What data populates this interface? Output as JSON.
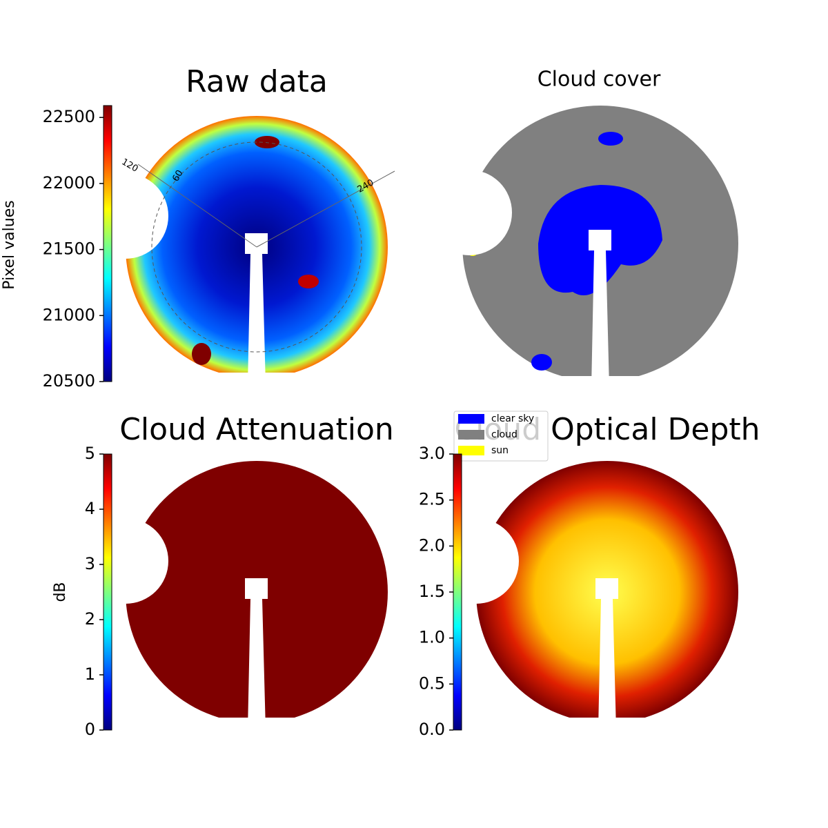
{
  "chart_data": [
    {
      "type": "image",
      "title": "Raw data",
      "colorbar": {
        "label": "Pixel values",
        "colormap": "jet",
        "ylim": [
          20500,
          22590
        ],
        "yticks": [
          20500,
          21000,
          21500,
          22000,
          22500
        ]
      },
      "annotations": [
        "120",
        "60",
        "240"
      ]
    },
    {
      "type": "image",
      "title": "Cloud cover",
      "legend": {
        "series": [
          {
            "name": "clear sky",
            "color": "#0000ff"
          },
          {
            "name": "cloud",
            "color": "#808080"
          },
          {
            "name": "sun",
            "color": "#ffff00"
          }
        ]
      }
    },
    {
      "type": "image",
      "title": "Cloud Attenuation",
      "colorbar": {
        "label": "dB",
        "colormap": "jet",
        "ylim": [
          0,
          5
        ],
        "yticks": [
          0,
          1,
          2,
          3,
          4,
          5
        ]
      }
    },
    {
      "type": "image",
      "title": "Cloud Optical Depth",
      "colorbar": {
        "colormap": "jet",
        "ylim": [
          0,
          3
        ],
        "yticks": [
          {
            "value": 0,
            "label": "0.0"
          },
          0.5,
          {
            "value": 1,
            "label": "1.0"
          },
          1.5,
          {
            "value": 2,
            "label": "2.0"
          },
          2.5,
          {
            "value": 3,
            "label": "3.0"
          }
        ]
      }
    }
  ]
}
